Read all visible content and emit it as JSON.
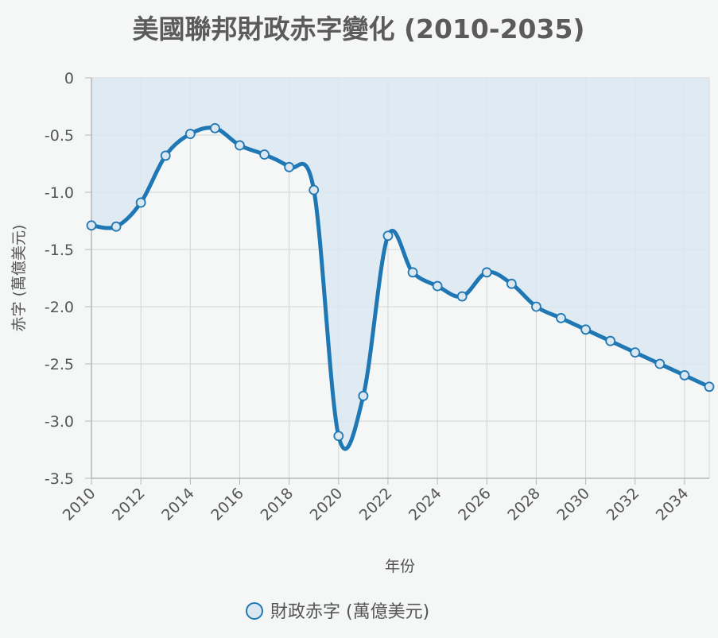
{
  "chart_data": {
    "type": "area",
    "title": "美國聯邦財政赤字變化 (2010-2035)",
    "xlabel": "年份",
    "ylabel": "赤字 (萬億美元)",
    "x": [
      2010,
      2011,
      2012,
      2013,
      2014,
      2015,
      2016,
      2017,
      2018,
      2019,
      2020,
      2021,
      2022,
      2023,
      2024,
      2025,
      2026,
      2027,
      2028,
      2029,
      2030,
      2031,
      2032,
      2033,
      2034,
      2035
    ],
    "x_tick_labels": [
      "2010",
      "2012",
      "2014",
      "2016",
      "2018",
      "2020",
      "2022",
      "2024",
      "2026",
      "2028",
      "2030",
      "2032",
      "2034"
    ],
    "y_tick_labels": [
      "0",
      "-0.5",
      "-1.0",
      "-1.5",
      "-2.0",
      "-2.5",
      "-3.0",
      "-3.5"
    ],
    "y_ticks": [
      0,
      -0.5,
      -1.0,
      -1.5,
      -2.0,
      -2.5,
      -3.0,
      -3.5
    ],
    "ylim": [
      -3.5,
      0
    ],
    "xlim": [
      2010,
      2035
    ],
    "grid": true,
    "legend_position": "bottom",
    "series": [
      {
        "name": "財政赤字 (萬億美元)",
        "values": [
          -1.29,
          -1.3,
          -1.09,
          -0.68,
          -0.49,
          -0.44,
          -0.59,
          -0.67,
          -0.78,
          -0.98,
          -3.13,
          -2.78,
          -1.38,
          -1.7,
          -1.82,
          -1.91,
          -1.7,
          -1.8,
          -2.0,
          -2.1,
          -2.2,
          -2.3,
          -2.4,
          -2.5,
          -2.6,
          -2.7
        ],
        "color": "#1f77b4",
        "fill_color": "#dbe7f1"
      }
    ]
  }
}
